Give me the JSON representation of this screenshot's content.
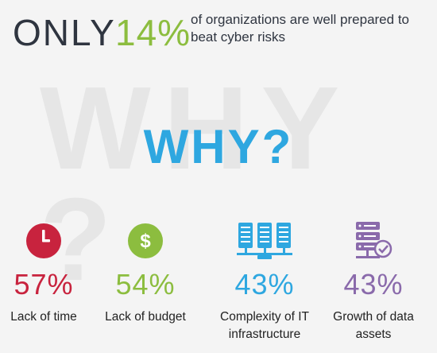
{
  "header": {
    "only_word": "ONLY",
    "percentage": "14%",
    "tagline": "of organizations are well prepared to beat cyber risks"
  },
  "watermark": "WHY ?",
  "why_title": "WHY?",
  "colors": {
    "red": "#c8233e",
    "green": "#8cbd3f",
    "blue": "#2ea7e0",
    "purple": "#8a6aab",
    "dark_text": "#2f3540"
  },
  "stats": [
    {
      "icon": "clock-icon",
      "value": "57%",
      "label": "Lack of time"
    },
    {
      "icon": "dollar-icon",
      "value": "54%",
      "label": "Lack of budget"
    },
    {
      "icon": "server-rack-icon",
      "value": "43%",
      "label": "Complexity of IT infrastructure"
    },
    {
      "icon": "database-server-check-icon",
      "value": "43%",
      "label": "Growth of data assets"
    }
  ]
}
